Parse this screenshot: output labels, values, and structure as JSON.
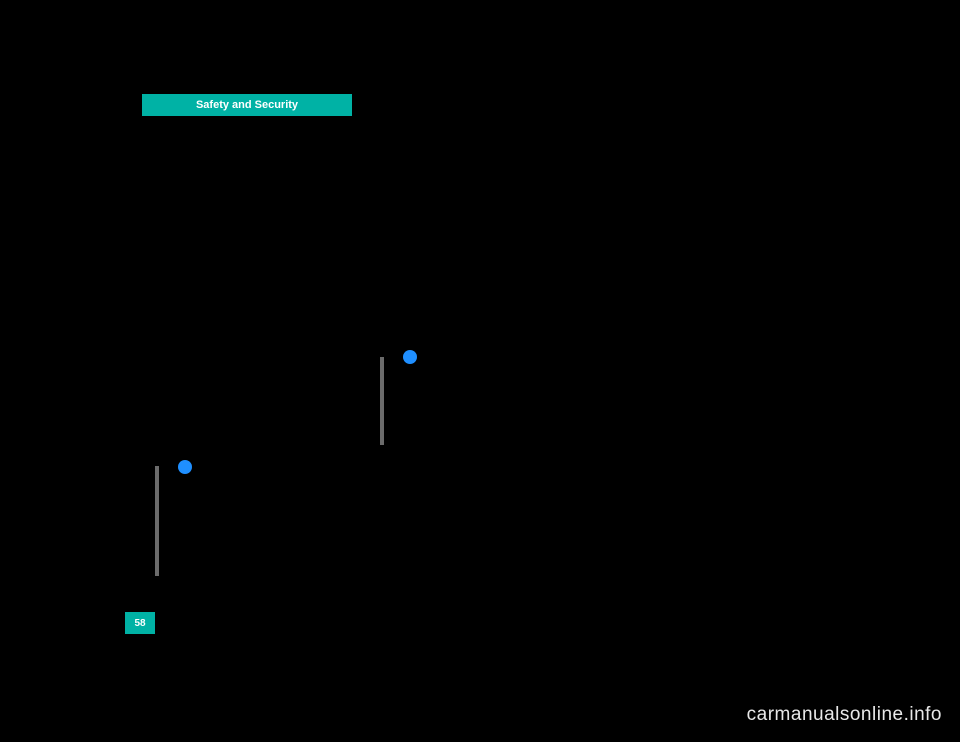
{
  "section": {
    "title": "Safety and Security",
    "tab_bg": "#00b2a5",
    "tab_text_color": "#ffffff"
  },
  "page_number": "58",
  "info_dots": {
    "color": "#1f8fff"
  },
  "gray_bar_color": "#6b6b6b",
  "background_color": "#000000",
  "watermark": "carmanualsonline.info",
  "watermark_color": "#e8e8e8"
}
